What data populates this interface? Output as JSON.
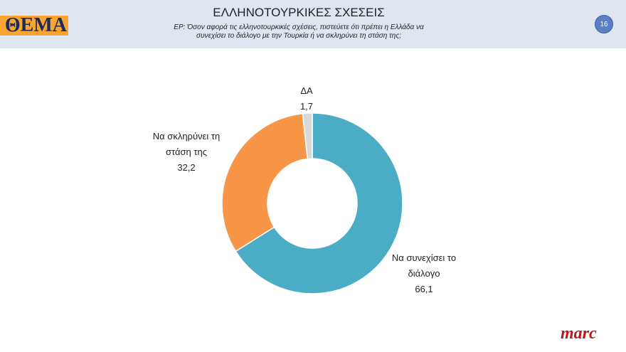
{
  "header": {
    "logo": "ΘΕΜΑ",
    "page_number": "16"
  },
  "chart_data": {
    "type": "donut",
    "title": "ΕΛΛΗΝΟΤΟΥΡΚΙΚΕΣ ΣΧΕΣΕΙΣ",
    "subtitle": "ΕΡ: Όσον αφορά τις ελληνοτουρκικές σχέσεις, πιστεύετε ότι πρέπει η Ελλάδα να συνεχίσει το διάλογο με την Τουρκία ή να σκληρύνει τη στάση της;",
    "categories": [
      "Να συνεχίσει το διάλογο",
      "Να σκληρύνει τη στάση της",
      "ΔΑ"
    ],
    "values": [
      66.1,
      32.2,
      1.7
    ],
    "value_labels": [
      "66,1",
      "32,2",
      "1,7"
    ],
    "colors": [
      "#4bacc6",
      "#f79646",
      "#d9d9d9"
    ]
  },
  "footer": {
    "brand": "marc"
  }
}
